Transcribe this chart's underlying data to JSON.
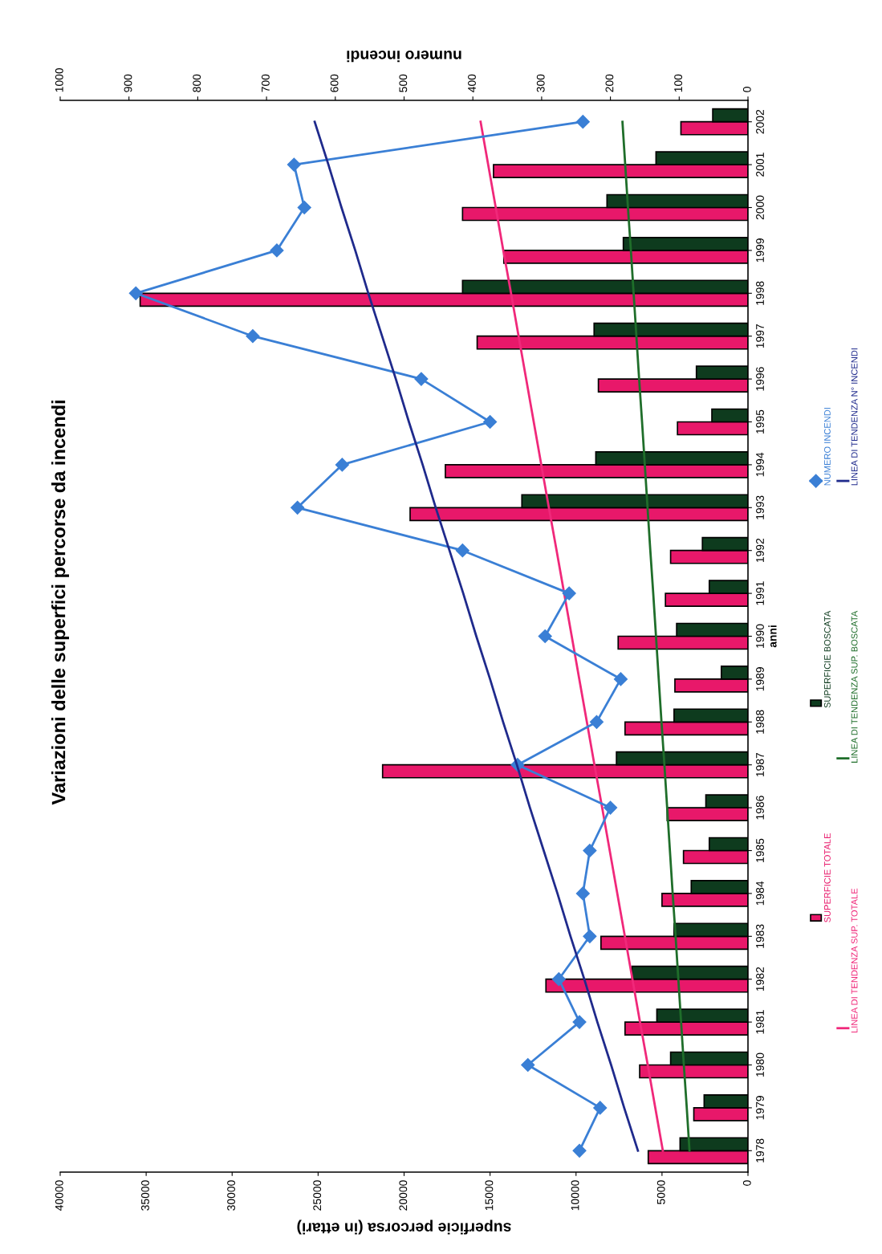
{
  "chart_data": {
    "type": "bar",
    "orientation": "horizontal",
    "title": "Variazioni delle superfici percorse da incendi",
    "xlabel": "superficie percorsa (in ettari)",
    "x2label": "numero incendi",
    "ylabel": "anni",
    "categories": [
      "2002",
      "2001",
      "2000",
      "1999",
      "1998",
      "1997",
      "1996",
      "1995",
      "1994",
      "1993",
      "1992",
      "1991",
      "1990",
      "1989",
      "1988",
      "1987",
      "1986",
      "1985",
      "1984",
      "1983",
      "1982",
      "1981",
      "1980",
      "1979",
      "1978"
    ],
    "xlim": [
      40000,
      0
    ],
    "xticks": [
      0,
      5000,
      10000,
      15000,
      20000,
      25000,
      30000,
      35000,
      40000
    ],
    "x2lim": [
      1000,
      0
    ],
    "x2ticks": [
      0,
      100,
      200,
      300,
      400,
      500,
      600,
      700,
      800,
      900,
      1000
    ],
    "legend": "right",
    "grid": false,
    "series": [
      {
        "name": "SUPERFICIE TOTALE",
        "type": "bar",
        "color": "#e8186a",
        "values": [
          3900,
          14800,
          16600,
          14200,
          35350,
          15750,
          8700,
          4100,
          17600,
          19650,
          4500,
          4800,
          7550,
          4250,
          7150,
          21250,
          4700,
          3750,
          5000,
          8550,
          11750,
          7150,
          6300,
          3150,
          5800
        ]
      },
      {
        "name": "SUPERFICIE BOSCATA",
        "type": "bar",
        "color": "#0e3b1e",
        "values": [
          2050,
          5350,
          8200,
          7250,
          16600,
          8950,
          3000,
          2100,
          8850,
          13150,
          2650,
          2250,
          4150,
          1550,
          4300,
          7650,
          2450,
          2250,
          3300,
          4300,
          6750,
          5300,
          4500,
          2550,
          3950
        ]
      },
      {
        "name": "NUMERO INCENDI",
        "type": "line",
        "axis": "x2",
        "marker": "diamond",
        "line_style": "solid",
        "color": "#3a7fd5",
        "values": [
          240,
          660,
          645,
          685,
          890,
          720,
          475,
          375,
          590,
          655,
          415,
          260,
          295,
          185,
          220,
          335,
          200,
          230,
          240,
          230,
          275,
          245,
          320,
          215,
          245
        ]
      },
      {
        "name": "LINEA DI TENDENZA SUP. TOTALE",
        "type": "line",
        "line_style": "solid",
        "color": "#f0287a",
        "values": [
          15550,
          15110,
          14670,
          14230,
          13780,
          13340,
          12900,
          12460,
          12020,
          11580,
          11130,
          10690,
          10250,
          9810,
          9370,
          8930,
          8480,
          8040,
          7600,
          7160,
          6720,
          6280,
          5830,
          5390,
          4950
        ]
      },
      {
        "name": "LINEA DI TENDENZA SUP. BOSCATA",
        "type": "line",
        "line_style": "solid",
        "color": "#1f6e2a",
        "values": [
          7300,
          7140,
          6980,
          6810,
          6650,
          6490,
          6330,
          6160,
          6000,
          5840,
          5680,
          5510,
          5350,
          5190,
          5030,
          4860,
          4700,
          4540,
          4380,
          4210,
          4050,
          3890,
          3730,
          3560,
          3400
        ]
      },
      {
        "name": "LINEA DI TENDENZA N° INCENDI",
        "type": "line",
        "axis": "x2",
        "line_style": "solid",
        "color": "#1f2a8c",
        "values": [
          630,
          610,
          591,
          571,
          552,
          532,
          512,
          493,
          473,
          454,
          434,
          414,
          395,
          375,
          356,
          336,
          317,
          297,
          277,
          258,
          238,
          219,
          199,
          180,
          160
        ]
      }
    ]
  }
}
